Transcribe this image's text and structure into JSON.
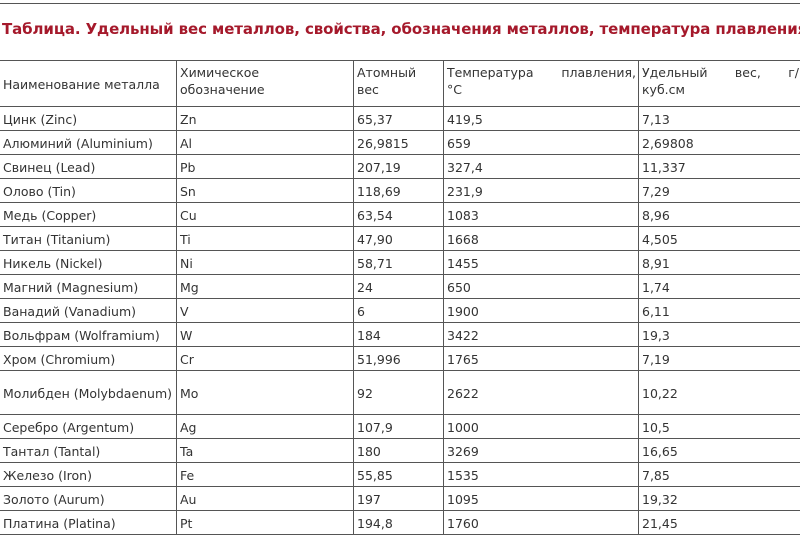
{
  "title": "Таблица. Удельный вес металлов, свойства, обозначения металлов, температура плавления",
  "table": {
    "headers": [
      {
        "line1": "Наименование металла",
        "line2": ""
      },
      {
        "line1": "Химическое",
        "line2": "обозначение"
      },
      {
        "line1": "Атомный",
        "line2": "вес"
      },
      {
        "line1": "Температура плавления,",
        "line2": "°С"
      },
      {
        "line1": "Удельный вес, г/",
        "line2": "куб.см"
      }
    ],
    "rows": [
      [
        "Цинк (Zinc)",
        "Zn",
        "65,37",
        "419,5",
        "7,13"
      ],
      [
        "Алюминий (Aluminium)",
        "Al",
        "26,9815",
        "659",
        "2,69808"
      ],
      [
        "Свинец (Lead)",
        "Pb",
        "207,19",
        "327,4",
        "11,337"
      ],
      [
        "Олово (Tin)",
        "Sn",
        "118,69",
        "231,9",
        "7,29"
      ],
      [
        "Медь (Copper)",
        "Cu",
        "63,54",
        "1083",
        "8,96"
      ],
      [
        "Титан (Titanium)",
        "Ti",
        "47,90",
        "1668",
        "4,505"
      ],
      [
        "Никель (Nickel)",
        "Ni",
        "58,71",
        "1455",
        "8,91"
      ],
      [
        "Магний (Magnesium)",
        "Mg",
        "24",
        "650",
        "1,74"
      ],
      [
        "Ванадий (Vanadium)",
        "V",
        "6",
        "1900",
        "6,11"
      ],
      [
        "Вольфрам (Wolframium)",
        "W",
        "184",
        "3422",
        "19,3"
      ],
      [
        "Хром (Chromium)",
        "Cr",
        "51,996",
        "1765",
        "7,19"
      ],
      [
        "Молибден (Molybdaenum)",
        "Mo",
        "92",
        "2622",
        "10,22"
      ],
      [
        "Серебро (Argentum)",
        "Ag",
        "107,9",
        "1000",
        "10,5"
      ],
      [
        "Тантал (Tantal)",
        "Ta",
        "180",
        "3269",
        "16,65"
      ],
      [
        "Железо (Iron)",
        "Fe",
        "55,85",
        "1535",
        "7,85"
      ],
      [
        "Золото (Aurum)",
        "Au",
        "197",
        "1095",
        "19,32"
      ],
      [
        "Платина (Platina)",
        "Pt",
        "194,8",
        "1760",
        "21,45"
      ]
    ]
  }
}
